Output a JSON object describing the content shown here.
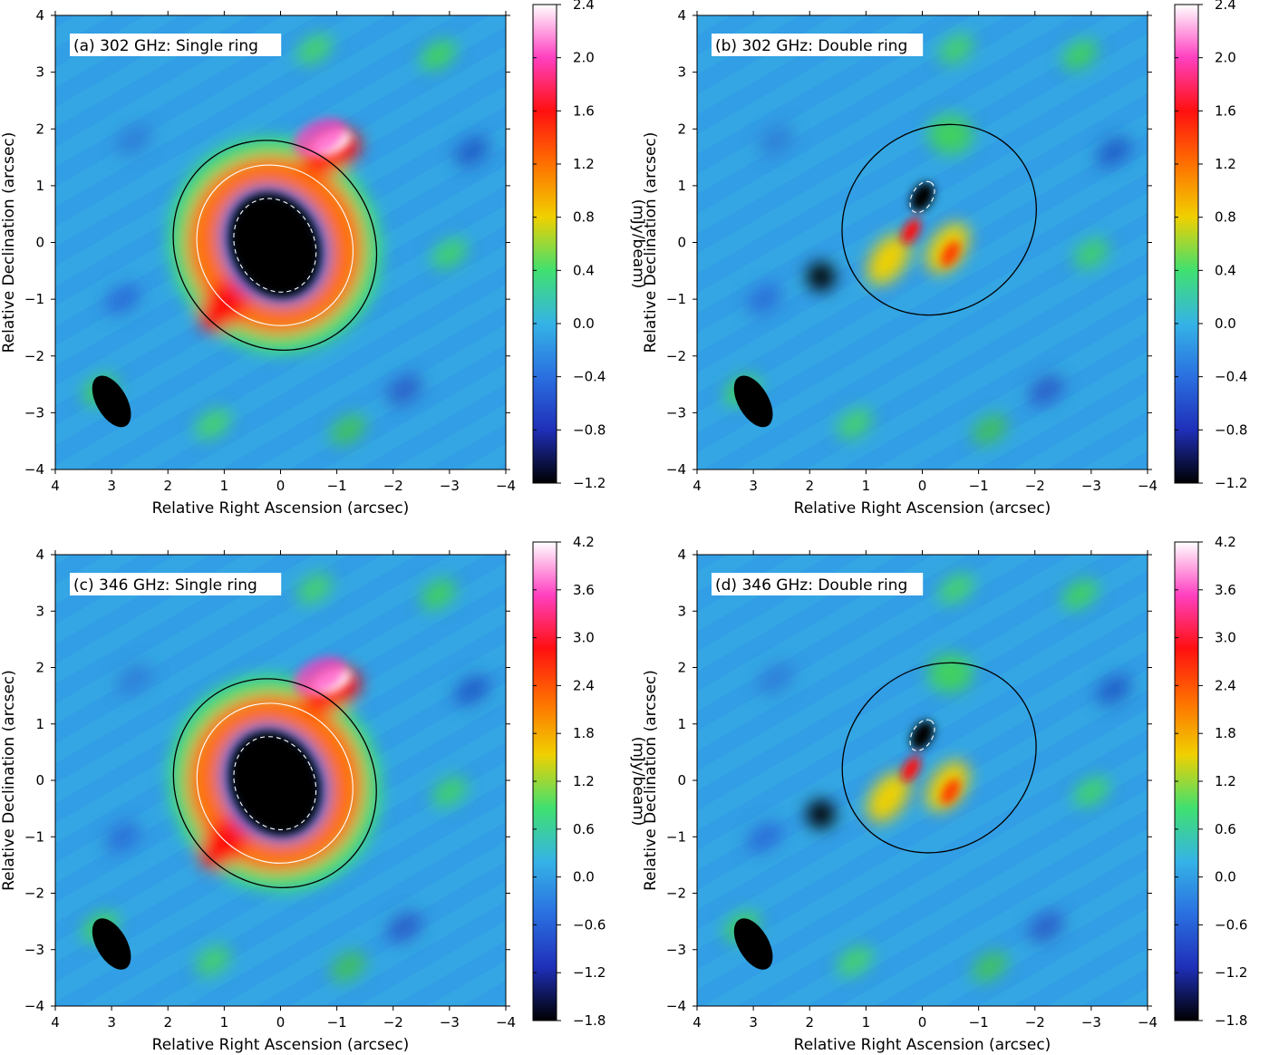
{
  "chart_data": [
    {
      "type": "heatmap",
      "title": "(a) 302 GHz: Single ring",
      "xlabel": "Relative Right Ascension (arcsec)",
      "ylabel": "Relative Declination (arcsec)",
      "xlim": [
        4,
        -4
      ],
      "ylim": [
        -4,
        4
      ],
      "x_ticks": [
        "4",
        "3",
        "2",
        "1",
        "0",
        "−1",
        "−2",
        "−3",
        "−4"
      ],
      "y_ticks": [
        "−4",
        "−3",
        "−2",
        "−1",
        "0",
        "1",
        "2",
        "3",
        "4"
      ],
      "colorbar": {
        "label": "(mJy/beam)",
        "range": [
          -1.2,
          2.4
        ],
        "ticks": [
          "−1.2",
          "−0.8",
          "−0.4",
          "0.0",
          "0.4",
          "0.8",
          "1.2",
          "1.6",
          "2.0",
          "2.4"
        ]
      },
      "structure": "single ring",
      "beam": {
        "x": 3.0,
        "y": -2.8
      }
    },
    {
      "type": "heatmap",
      "title": "(b) 302 GHz: Double ring",
      "xlabel": "Relative Right Ascension (arcsec)",
      "ylabel": "Relative Declination (arcsec)",
      "xlim": [
        4,
        -4
      ],
      "ylim": [
        -4,
        4
      ],
      "x_ticks": [
        "4",
        "3",
        "2",
        "1",
        "0",
        "−1",
        "−2",
        "−3",
        "−4"
      ],
      "y_ticks": [
        "−4",
        "−3",
        "−2",
        "−1",
        "0",
        "1",
        "2",
        "3",
        "4"
      ],
      "colorbar": {
        "label": "(mJy/beam)",
        "range": [
          -1.2,
          2.4
        ],
        "ticks": [
          "−1.2",
          "−0.8",
          "−0.4",
          "0.0",
          "0.4",
          "0.8",
          "1.2",
          "1.6",
          "2.0",
          "2.4"
        ]
      },
      "structure": "double ring",
      "beam": {
        "x": 3.0,
        "y": -2.8
      }
    },
    {
      "type": "heatmap",
      "title": "(c) 346 GHz: Single ring",
      "xlabel": "Relative Right Ascension (arcsec)",
      "ylabel": "Relative Declination (arcsec)",
      "xlim": [
        4,
        -4
      ],
      "ylim": [
        -4,
        4
      ],
      "x_ticks": [
        "4",
        "3",
        "2",
        "1",
        "0",
        "−1",
        "−2",
        "−3",
        "−4"
      ],
      "y_ticks": [
        "−4",
        "−3",
        "−2",
        "−1",
        "0",
        "1",
        "2",
        "3",
        "4"
      ],
      "colorbar": {
        "label": "(mJy/beam)",
        "range": [
          -1.8,
          4.2
        ],
        "ticks": [
          "−1.8",
          "−1.2",
          "−0.6",
          "0.0",
          "0.6",
          "1.2",
          "1.8",
          "2.4",
          "3.0",
          "3.6",
          "4.2"
        ]
      },
      "structure": "single ring",
      "beam": {
        "x": 3.0,
        "y": -2.9
      }
    },
    {
      "type": "heatmap",
      "title": "(d) 346 GHz: Double ring",
      "xlabel": "Relative Right Ascension (arcsec)",
      "ylabel": "Relative Declination (arcsec)",
      "xlim": [
        4,
        -4
      ],
      "ylim": [
        -4,
        4
      ],
      "x_ticks": [
        "4",
        "3",
        "2",
        "1",
        "0",
        "−1",
        "−2",
        "−3",
        "−4"
      ],
      "y_ticks": [
        "−4",
        "−3",
        "−2",
        "−1",
        "0",
        "1",
        "2",
        "3",
        "4"
      ],
      "colorbar": {
        "label": "(mJy/beam)",
        "range": [
          -1.8,
          4.2
        ],
        "ticks": [
          "−1.8",
          "−1.2",
          "−0.6",
          "0.0",
          "0.6",
          "1.2",
          "1.8",
          "2.4",
          "3.0",
          "3.6",
          "4.2"
        ]
      },
      "structure": "double ring",
      "beam": {
        "x": 3.0,
        "y": -2.9
      }
    }
  ],
  "colormap": [
    "#000000",
    "#1f2fb8",
    "#2a6fe0",
    "#35b3e6",
    "#40e070",
    "#f0d000",
    "#ff7000",
    "#ff1010",
    "#ff40c0",
    "#ffffff"
  ]
}
